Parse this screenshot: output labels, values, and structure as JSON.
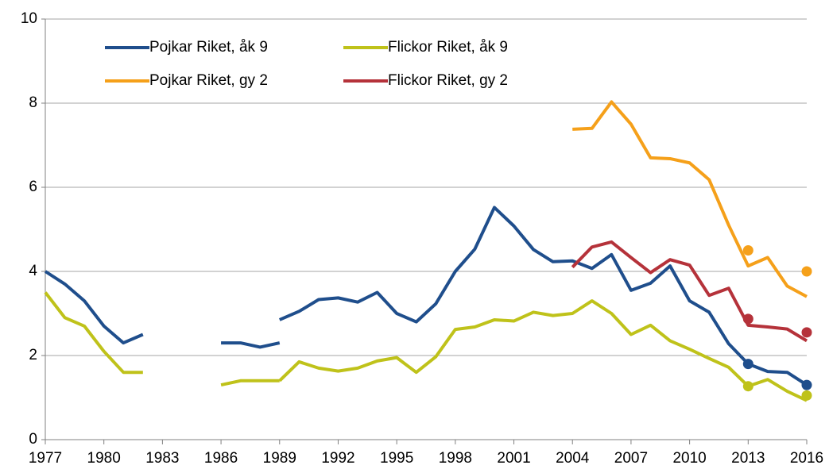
{
  "chart_data": {
    "type": "line",
    "x": [
      1977,
      1978,
      1979,
      1980,
      1981,
      1982,
      1983,
      1984,
      1985,
      1986,
      1987,
      1988,
      1989,
      1989,
      1989,
      1990,
      1991,
      1992,
      1993,
      1994,
      1995,
      1996,
      1997,
      1998,
      1999,
      2000,
      2001,
      2002,
      2003,
      2004,
      2005,
      2006,
      2007,
      2008,
      2009,
      2010,
      2011,
      2012,
      2013,
      2014,
      2015,
      2016
    ],
    "series": [
      {
        "name": "Pojkar Riket, åk 9",
        "color": "#1f4e8c",
        "values": [
          4.0,
          3.7,
          3.3,
          2.7,
          2.3,
          2.5,
          null,
          null,
          null,
          2.3,
          2.3,
          2.2,
          2.3,
          null,
          2.85,
          3.05,
          3.33,
          3.37,
          3.27,
          3.5,
          3.0,
          2.8,
          3.23,
          4.0,
          4.53,
          5.52,
          5.08,
          4.52,
          4.23,
          4.25,
          4.07,
          4.4,
          3.55,
          3.72,
          4.13,
          3.3,
          3.03,
          2.28,
          1.8,
          1.62,
          1.6,
          1.3
        ],
        "dots": [
          1.8,
          1.3
        ]
      },
      {
        "name": "Flickor Riket, åk 9",
        "color": "#bfc21a",
        "values": [
          3.5,
          2.9,
          2.7,
          2.1,
          1.6,
          1.6,
          null,
          null,
          null,
          1.3,
          1.4,
          1.4,
          1.4,
          null,
          1.4,
          1.85,
          1.7,
          1.63,
          1.7,
          1.87,
          1.95,
          1.6,
          1.97,
          2.62,
          2.68,
          2.85,
          2.82,
          3.03,
          2.95,
          3.0,
          3.3,
          3.0,
          2.5,
          2.72,
          2.35,
          2.15,
          1.93,
          1.72,
          1.27,
          1.43,
          1.15,
          0.93
        ],
        "dots": [
          1.27,
          1.05
        ]
      },
      {
        "name": "Pojkar Riket, gy 2",
        "color": "#f5a01a",
        "values": [
          null,
          null,
          null,
          null,
          null,
          null,
          null,
          null,
          null,
          null,
          null,
          null,
          null,
          null,
          null,
          null,
          null,
          null,
          null,
          null,
          null,
          null,
          null,
          null,
          null,
          null,
          null,
          null,
          null,
          7.38,
          7.4,
          8.03,
          7.5,
          6.7,
          6.68,
          6.58,
          6.18,
          5.1,
          4.13,
          4.33,
          3.65,
          3.4
        ],
        "dots": [
          4.5,
          4.0
        ]
      },
      {
        "name": "Flickor Riket, gy 2",
        "color": "#b5323a",
        "values": [
          null,
          null,
          null,
          null,
          null,
          null,
          null,
          null,
          null,
          null,
          null,
          null,
          null,
          null,
          null,
          null,
          null,
          null,
          null,
          null,
          null,
          null,
          null,
          null,
          null,
          null,
          null,
          null,
          null,
          4.1,
          4.58,
          4.7,
          4.33,
          3.97,
          4.28,
          4.15,
          3.43,
          3.6,
          2.72,
          2.68,
          2.63,
          2.35
        ],
        "dots": [
          2.87,
          2.55
        ]
      }
    ],
    "dot_x": [
      2013,
      2016
    ],
    "xlim": [
      1977,
      2016
    ],
    "xticks": [
      1977,
      1980,
      1983,
      1986,
      1989,
      1992,
      1995,
      1998,
      2001,
      2004,
      2007,
      2010,
      2013,
      2016
    ],
    "ylim": [
      0,
      10
    ],
    "yticks": [
      0,
      2,
      4,
      6,
      8,
      10
    ],
    "grid": true,
    "legend": "top-left"
  }
}
